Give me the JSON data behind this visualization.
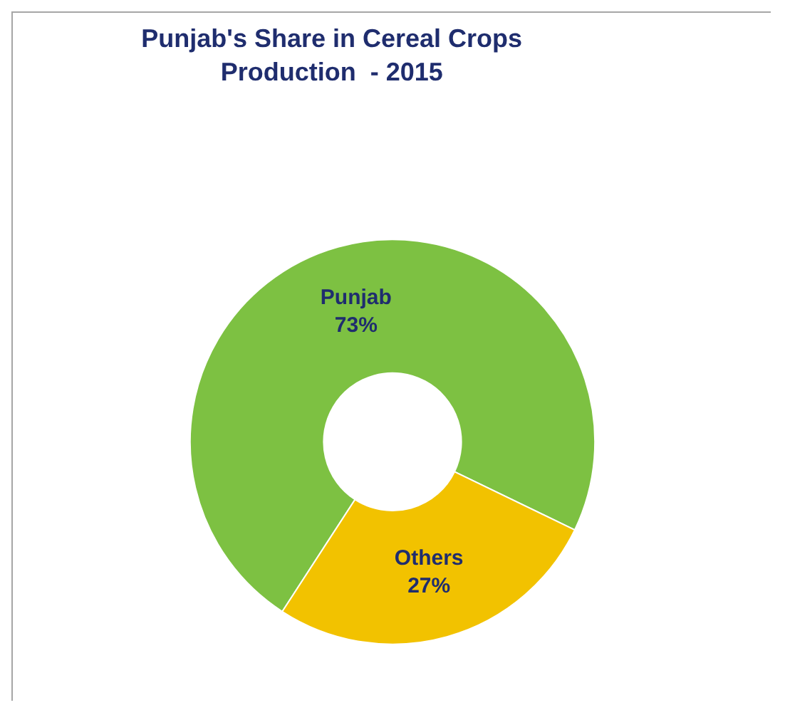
{
  "chart_data": {
    "type": "donut",
    "title": "Punjab's Share in Cereal Crops\nProduction  - 2015",
    "categories": [
      "Punjab",
      "Others"
    ],
    "values": [
      73,
      27
    ],
    "value_labels": [
      "73%",
      "27%"
    ],
    "colors": [
      "#7dc142",
      "#f2c200"
    ],
    "legend": false
  }
}
